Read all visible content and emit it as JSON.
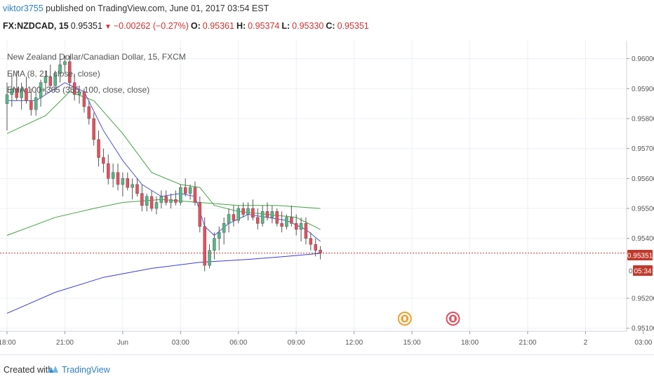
{
  "header": {
    "author": "viktor3755",
    "published": "published on TradingView.com, June 01, 2017 03:54 EST"
  },
  "ticker": {
    "symbol": "FX:NZDCAD, 15",
    "last": "0.95351",
    "change": "−0.00262 (−0.27%)",
    "open_label": "O:",
    "open": "0.95361",
    "high_label": "H:",
    "high": "0.95374",
    "low_label": "L:",
    "low": "0.95330",
    "close_label": "C:",
    "close": "0.95351"
  },
  "legend": {
    "title": "New Zealand Dollar/Canadian Dollar, 15, FXCM",
    "ema1": "EMA (8, 21, close, close)",
    "ema2": "EMA 100+365 (365, 100, close, close)"
  },
  "price_badges": {
    "last": "0.95351",
    "timer": "05:34",
    "partial_tick": "0"
  },
  "footer": {
    "created_with": "Created with",
    "brand": "TradingView"
  },
  "colors": {
    "up": "#53b987",
    "down": "#eb4d5c",
    "ema_fast": "#4f52d9",
    "ema_green": "#44a343",
    "ema365": "#3a3de0",
    "last_price": "#c0392b",
    "grid": "#eceff4"
  },
  "chart_data": {
    "type": "candlestick",
    "ylim": [
      0.9509,
      0.9606
    ],
    "y_ticks": [
      "0.96000",
      "0.95900",
      "0.95800",
      "0.95700",
      "0.95600",
      "0.95500",
      "0.95400",
      "0.95200",
      "0.95100"
    ],
    "y_tick_values": [
      0.96,
      0.959,
      0.958,
      0.957,
      0.956,
      0.955,
      0.954,
      0.952,
      0.951
    ],
    "x_ticks": [
      "18:00",
      "21:00",
      "Jun",
      "03:00",
      "06:00",
      "09:00",
      "12:00",
      "15:00",
      "18:00",
      "21:00",
      "2",
      "03:00"
    ],
    "x_tick_bars": [
      0,
      12,
      24,
      36,
      48,
      60,
      72,
      84,
      96,
      108,
      120,
      132
    ],
    "event_markers": [
      {
        "bar": 82.5,
        "color": "#f0a030"
      },
      {
        "bar": 92.5,
        "color": "#e05060"
      }
    ],
    "last_price": 0.95351,
    "candles": [
      [
        0.9585,
        0.9592,
        0.9576,
        0.9588
      ],
      [
        0.9588,
        0.9595,
        0.9584,
        0.959
      ],
      [
        0.959,
        0.9596,
        0.9586,
        0.9587
      ],
      [
        0.9587,
        0.9592,
        0.9583,
        0.959
      ],
      [
        0.959,
        0.9594,
        0.9585,
        0.9586
      ],
      [
        0.9586,
        0.959,
        0.9581,
        0.9583
      ],
      [
        0.9583,
        0.9589,
        0.9581,
        0.9587
      ],
      [
        0.9587,
        0.9593,
        0.9584,
        0.9592
      ],
      [
        0.9592,
        0.9596,
        0.9588,
        0.9594
      ],
      [
        0.9594,
        0.9598,
        0.959,
        0.9591
      ],
      [
        0.9591,
        0.9596,
        0.9589,
        0.9595
      ],
      [
        0.9595,
        0.96,
        0.9592,
        0.9598
      ],
      [
        0.9598,
        0.9601,
        0.9595,
        0.9599
      ],
      [
        0.9599,
        0.9601,
        0.959,
        0.9592
      ],
      [
        0.9592,
        0.9595,
        0.9586,
        0.9588
      ],
      [
        0.9588,
        0.9591,
        0.9585,
        0.9589
      ],
      [
        0.9589,
        0.959,
        0.9582,
        0.9584
      ],
      [
        0.9584,
        0.9586,
        0.9578,
        0.958
      ],
      [
        0.958,
        0.9582,
        0.9571,
        0.9573
      ],
      [
        0.9573,
        0.9576,
        0.9564,
        0.9567
      ],
      [
        0.9567,
        0.957,
        0.9562,
        0.9565
      ],
      [
        0.9565,
        0.9568,
        0.9558,
        0.956
      ],
      [
        0.956,
        0.9565,
        0.9557,
        0.9562
      ],
      [
        0.9562,
        0.9565,
        0.9556,
        0.9558
      ],
      [
        0.9558,
        0.9562,
        0.9554,
        0.956
      ],
      [
        0.956,
        0.9562,
        0.9556,
        0.9557
      ],
      [
        0.9557,
        0.956,
        0.9553,
        0.9558
      ],
      [
        0.9558,
        0.956,
        0.9554,
        0.9555
      ],
      [
        0.9555,
        0.9558,
        0.9549,
        0.9551
      ],
      [
        0.9551,
        0.9555,
        0.9549,
        0.9554
      ],
      [
        0.9554,
        0.9556,
        0.9549,
        0.955
      ],
      [
        0.955,
        0.9554,
        0.9548,
        0.9552
      ],
      [
        0.9552,
        0.9556,
        0.955,
        0.9554
      ],
      [
        0.9554,
        0.9556,
        0.9551,
        0.9552
      ],
      [
        0.9552,
        0.9555,
        0.955,
        0.9553
      ],
      [
        0.9553,
        0.9556,
        0.9551,
        0.9552
      ],
      [
        0.9552,
        0.9558,
        0.9551,
        0.9557
      ],
      [
        0.9557,
        0.956,
        0.9554,
        0.9555
      ],
      [
        0.9555,
        0.9558,
        0.9553,
        0.9557
      ],
      [
        0.9557,
        0.9559,
        0.9551,
        0.9552
      ],
      [
        0.9552,
        0.9554,
        0.9542,
        0.9544
      ],
      [
        0.9544,
        0.9547,
        0.9529,
        0.9531
      ],
      [
        0.9531,
        0.9538,
        0.953,
        0.9536
      ],
      [
        0.9536,
        0.9542,
        0.9533,
        0.954
      ],
      [
        0.954,
        0.9544,
        0.9536,
        0.9542
      ],
      [
        0.9542,
        0.9547,
        0.9538,
        0.9545
      ],
      [
        0.9545,
        0.955,
        0.9542,
        0.9548
      ],
      [
        0.9548,
        0.9551,
        0.9544,
        0.9546
      ],
      [
        0.9546,
        0.9551,
        0.9545,
        0.955
      ],
      [
        0.955,
        0.9552,
        0.9547,
        0.9548
      ],
      [
        0.9548,
        0.9552,
        0.9546,
        0.955
      ],
      [
        0.955,
        0.9553,
        0.9546,
        0.9547
      ],
      [
        0.9547,
        0.955,
        0.9543,
        0.9545
      ],
      [
        0.9545,
        0.9551,
        0.9544,
        0.9549
      ],
      [
        0.9549,
        0.9552,
        0.9546,
        0.9547
      ],
      [
        0.9547,
        0.9551,
        0.9545,
        0.9549
      ],
      [
        0.9549,
        0.955,
        0.9544,
        0.9545
      ],
      [
        0.9545,
        0.9549,
        0.9542,
        0.9544
      ],
      [
        0.9544,
        0.9548,
        0.9543,
        0.9547
      ],
      [
        0.9547,
        0.9551,
        0.9544,
        0.9545
      ],
      [
        0.9545,
        0.9548,
        0.9541,
        0.9543
      ],
      [
        0.9543,
        0.9547,
        0.9539,
        0.9545
      ],
      [
        0.9545,
        0.9547,
        0.9538,
        0.954
      ],
      [
        0.954,
        0.9542,
        0.9536,
        0.9538
      ],
      [
        0.9538,
        0.954,
        0.9534,
        0.9536
      ],
      [
        0.95361,
        0.95374,
        0.9533,
        0.95351
      ]
    ],
    "ema_fast": [
      [
        0,
        0.9586
      ],
      [
        6,
        0.9586
      ],
      [
        12,
        0.9592
      ],
      [
        16,
        0.9589
      ],
      [
        20,
        0.9576
      ],
      [
        24,
        0.9566
      ],
      [
        28,
        0.9558
      ],
      [
        32,
        0.9554
      ],
      [
        36,
        0.9555
      ],
      [
        39,
        0.9554
      ],
      [
        41,
        0.9544
      ],
      [
        43,
        0.9541
      ],
      [
        46,
        0.9545
      ],
      [
        50,
        0.9548
      ],
      [
        54,
        0.9547
      ],
      [
        58,
        0.9546
      ],
      [
        62,
        0.9543
      ],
      [
        65,
        0.9539
      ]
    ],
    "ema_mid": [
      [
        0,
        0.9575
      ],
      [
        8,
        0.9581
      ],
      [
        13,
        0.9589
      ],
      [
        18,
        0.9586
      ],
      [
        24,
        0.9575
      ],
      [
        30,
        0.9562
      ],
      [
        36,
        0.9558
      ],
      [
        40,
        0.9557
      ],
      [
        43,
        0.9551
      ],
      [
        48,
        0.9549
      ],
      [
        54,
        0.9548
      ],
      [
        60,
        0.9547
      ],
      [
        65,
        0.9543
      ]
    ],
    "ema100": [
      [
        0,
        0.9541
      ],
      [
        10,
        0.9547
      ],
      [
        18,
        0.955
      ],
      [
        24,
        0.9552
      ],
      [
        32,
        0.9553
      ],
      [
        40,
        0.9552
      ],
      [
        48,
        0.9551
      ],
      [
        56,
        0.9551
      ],
      [
        65,
        0.955
      ]
    ],
    "ema365": [
      [
        0,
        0.9515
      ],
      [
        10,
        0.9522
      ],
      [
        20,
        0.9527
      ],
      [
        30,
        0.953
      ],
      [
        40,
        0.9532
      ],
      [
        50,
        0.9533
      ],
      [
        58,
        0.9534
      ],
      [
        65,
        0.9535
      ]
    ]
  }
}
